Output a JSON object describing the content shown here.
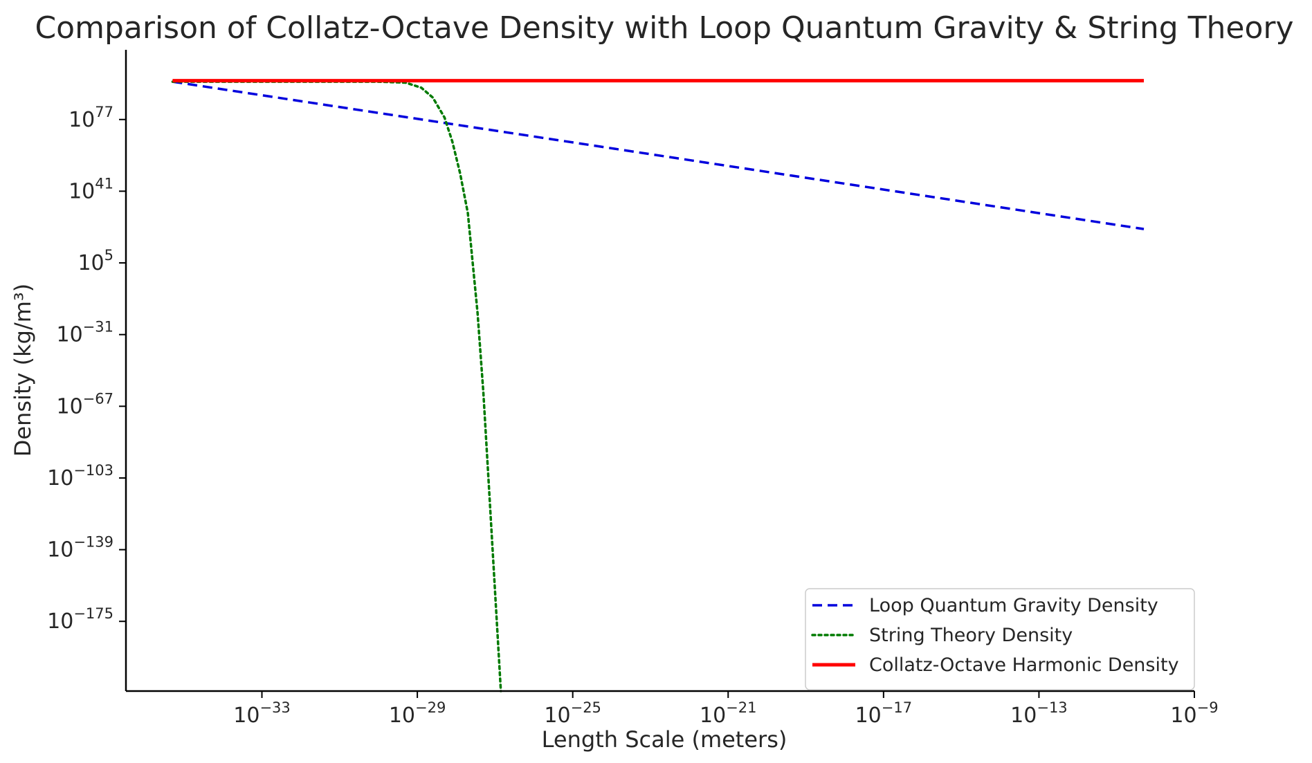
{
  "chart_data": {
    "type": "line",
    "title": "Comparison of Collatz-Octave Density with Loop Quantum Gravity & String Theory",
    "xlabel": "Length Scale (meters)",
    "ylabel": "Density (kg/m³)",
    "xscale": "log",
    "yscale": "log",
    "xlim_exponent": [
      -36.5,
      -9
    ],
    "ylim_exponent": [
      -210,
      112
    ],
    "x_ticks": [
      {
        "base": "10",
        "exp": "−33",
        "value_exp": -33
      },
      {
        "base": "10",
        "exp": "−29",
        "value_exp": -29
      },
      {
        "base": "10",
        "exp": "−25",
        "value_exp": -25
      },
      {
        "base": "10",
        "exp": "−21",
        "value_exp": -21
      },
      {
        "base": "10",
        "exp": "−17",
        "value_exp": -17
      },
      {
        "base": "10",
        "exp": "−13",
        "value_exp": -13
      },
      {
        "base": "10",
        "exp": "−9",
        "value_exp": -9
      }
    ],
    "y_ticks": [
      {
        "base": "10",
        "exp": "77",
        "value_exp": 77
      },
      {
        "base": "10",
        "exp": "41",
        "value_exp": 41
      },
      {
        "base": "10",
        "exp": "5",
        "value_exp": 5
      },
      {
        "base": "10",
        "exp": "−31",
        "value_exp": -31
      },
      {
        "base": "10",
        "exp": "−67",
        "value_exp": -67
      },
      {
        "base": "10",
        "exp": "−103",
        "value_exp": -103
      },
      {
        "base": "10",
        "exp": "−139",
        "value_exp": -139
      },
      {
        "base": "10",
        "exp": "−175",
        "value_exp": -175
      }
    ],
    "legend_position": "lower-right",
    "grid": false,
    "series": [
      {
        "name": "Loop Quantum Gravity Density",
        "color": "#0000dd",
        "style": "dashed",
        "points_log10": [
          [
            -35.3,
            96
          ],
          [
            -10.3,
            22
          ]
        ]
      },
      {
        "name": "String Theory Density",
        "color": "#007a00",
        "style": "dotted",
        "points_log10": [
          [
            -35.3,
            96
          ],
          [
            -30,
            96
          ],
          [
            -29.3,
            95.5
          ],
          [
            -28.9,
            93
          ],
          [
            -28.6,
            88
          ],
          [
            -28.3,
            78
          ],
          [
            -28.1,
            66
          ],
          [
            -27.9,
            50
          ],
          [
            -27.7,
            30
          ],
          [
            -27.6,
            10
          ],
          [
            -27.45,
            -20
          ],
          [
            -27.3,
            -60
          ],
          [
            -27.15,
            -110
          ],
          [
            -27.0,
            -160
          ],
          [
            -26.85,
            -210
          ]
        ]
      },
      {
        "name": "Collatz-Octave Harmonic Density",
        "color": "#ff0000",
        "style": "solid",
        "points_log10": [
          [
            -35.3,
            96.5
          ],
          [
            -10.3,
            96.5
          ]
        ]
      }
    ]
  }
}
